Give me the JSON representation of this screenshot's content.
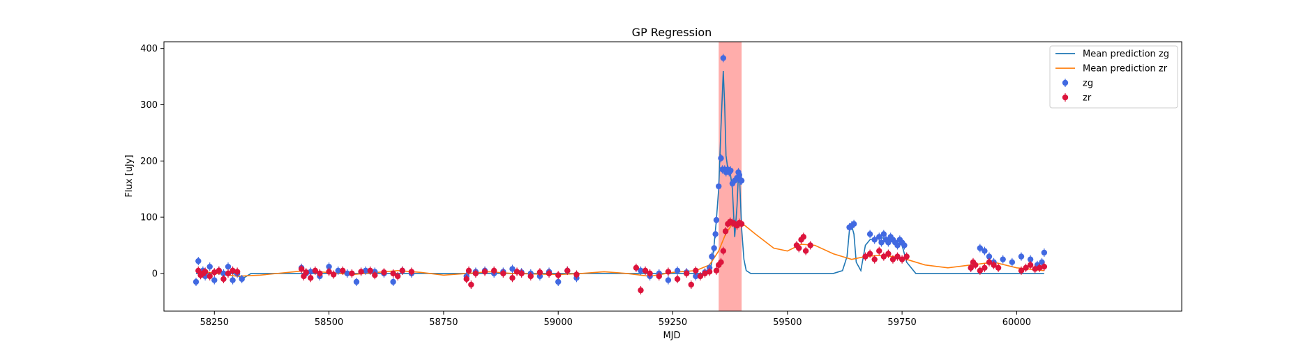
{
  "chart_data": {
    "type": "scatter",
    "title": "GP Regression",
    "xlabel": "MJD",
    "ylabel": "Flux [uJy]",
    "xlim": [
      58140,
      60360
    ],
    "ylim": [
      -67,
      412
    ],
    "xticks": [
      58250,
      58500,
      58750,
      59000,
      59250,
      59500,
      59750,
      60000
    ],
    "yticks": [
      0,
      100,
      200,
      300,
      400
    ],
    "grid": false,
    "legend_position": "top-right",
    "highlight_band": {
      "x0": 59350,
      "x1": 59400,
      "color": "#ff9896"
    },
    "series": [
      {
        "name": "Mean prediction zg",
        "kind": "line",
        "color": "#1f77b4",
        "x": [
          58210,
          58290,
          58300,
          58310,
          58320,
          58330,
          58340,
          59330,
          59335,
          59340,
          59345,
          59350,
          59355,
          59360,
          59363,
          59366,
          59370,
          59375,
          59380,
          59385,
          59390,
          59393,
          59396,
          59400,
          59405,
          59410,
          59420,
          59600,
          59620,
          59630,
          59635,
          59640,
          59645,
          59650,
          59660,
          59670,
          59680,
          59700,
          59720,
          59740,
          59750,
          59760,
          59780,
          59890,
          60060
        ],
        "y": [
          0,
          0,
          -3,
          -10,
          -5,
          0,
          0,
          0,
          20,
          50,
          95,
          150,
          260,
          360,
          300,
          210,
          185,
          180,
          150,
          65,
          120,
          175,
          160,
          80,
          25,
          5,
          0,
          0,
          5,
          30,
          75,
          85,
          70,
          20,
          5,
          50,
          60,
          65,
          60,
          55,
          50,
          20,
          0,
          0,
          0
        ]
      },
      {
        "name": "Mean prediction zr",
        "kind": "line",
        "color": "#ff7f0e",
        "x": [
          58210,
          58300,
          58350,
          58450,
          58550,
          58650,
          58700,
          58750,
          58800,
          58850,
          58900,
          59000,
          59050,
          59100,
          59150,
          59200,
          59250,
          59300,
          59330,
          59350,
          59365,
          59380,
          59400,
          59430,
          59470,
          59500,
          59530,
          59560,
          59600,
          59640,
          59670,
          59700,
          59730,
          59760,
          59800,
          59850,
          59900,
          59950,
          60000,
          60060
        ],
        "y": [
          5,
          -5,
          -3,
          5,
          -2,
          5,
          2,
          -3,
          0,
          3,
          0,
          -2,
          0,
          3,
          0,
          -5,
          2,
          5,
          15,
          40,
          70,
          88,
          90,
          70,
          45,
          40,
          52,
          50,
          35,
          25,
          30,
          32,
          30,
          25,
          15,
          10,
          15,
          20,
          10,
          5
        ]
      },
      {
        "name": "zg",
        "kind": "points",
        "color": "#4169e1",
        "x": [
          58210,
          58215,
          58220,
          58225,
          58230,
          58240,
          58250,
          58260,
          58270,
          58280,
          58290,
          58300,
          58310,
          58440,
          58450,
          58460,
          58480,
          58500,
          58520,
          58540,
          58560,
          58580,
          58600,
          58620,
          58640,
          58660,
          58680,
          58800,
          58820,
          58840,
          58860,
          58880,
          58900,
          58920,
          58940,
          58960,
          58980,
          59000,
          59020,
          59040,
          59180,
          59200,
          59220,
          59240,
          59260,
          59280,
          59300,
          59320,
          59330,
          59335,
          59340,
          59343,
          59345,
          59350,
          59355,
          59358,
          59360,
          59363,
          59366,
          59370,
          59373,
          59376,
          59380,
          59385,
          59390,
          59393,
          59395,
          59398,
          59400,
          59635,
          59640,
          59645,
          59680,
          59690,
          59700,
          59705,
          59710,
          59715,
          59720,
          59725,
          59730,
          59735,
          59740,
          59745,
          59750,
          59755,
          59900,
          59920,
          59930,
          59940,
          59950,
          59970,
          59990,
          60010,
          60030,
          60045,
          60055,
          60060
        ],
        "y": [
          -15,
          22,
          0,
          5,
          -5,
          12,
          -12,
          5,
          0,
          12,
          -12,
          0,
          -10,
          10,
          0,
          3,
          -5,
          12,
          5,
          0,
          -15,
          5,
          3,
          0,
          -15,
          5,
          0,
          -5,
          3,
          5,
          0,
          3,
          8,
          2,
          0,
          -5,
          3,
          -15,
          5,
          -8,
          5,
          -5,
          0,
          -12,
          5,
          2,
          -5,
          2,
          10,
          30,
          45,
          70,
          95,
          155,
          205,
          185,
          383,
          185,
          180,
          185,
          180,
          183,
          160,
          165,
          170,
          180,
          175,
          165,
          165,
          82,
          85,
          88,
          70,
          60,
          65,
          55,
          70,
          60,
          55,
          65,
          60,
          55,
          50,
          60,
          55,
          50,
          10,
          45,
          40,
          30,
          20,
          25,
          20,
          30,
          25,
          15,
          20,
          37
        ]
      },
      {
        "name": "zr",
        "kind": "points",
        "color": "#dc143c",
        "x": [
          58215,
          58220,
          58225,
          58230,
          58240,
          58250,
          58260,
          58270,
          58280,
          58290,
          58300,
          58440,
          58445,
          58450,
          58460,
          58470,
          58480,
          58500,
          58510,
          58530,
          58550,
          58570,
          58590,
          58600,
          58620,
          58640,
          58650,
          58660,
          58680,
          58800,
          58805,
          58810,
          58820,
          58840,
          58860,
          58880,
          58900,
          58910,
          58920,
          58940,
          58960,
          58980,
          59000,
          59020,
          59040,
          59170,
          59180,
          59190,
          59200,
          59220,
          59240,
          59260,
          59280,
          59290,
          59300,
          59310,
          59320,
          59330,
          59345,
          59350,
          59355,
          59360,
          59365,
          59370,
          59375,
          59380,
          59385,
          59390,
          59395,
          59400,
          59520,
          59525,
          59530,
          59535,
          59540,
          59550,
          59670,
          59680,
          59690,
          59700,
          59710,
          59720,
          59730,
          59740,
          59750,
          59760,
          59900,
          59905,
          59910,
          59920,
          59930,
          59940,
          59950,
          59960,
          60010,
          60020,
          60030,
          60040,
          60050,
          60060
        ],
        "y": [
          5,
          -3,
          0,
          3,
          -5,
          2,
          5,
          -10,
          0,
          5,
          3,
          8,
          -5,
          2,
          -8,
          5,
          0,
          3,
          -2,
          5,
          0,
          3,
          5,
          -3,
          2,
          0,
          -5,
          5,
          3,
          -10,
          5,
          -20,
          0,
          3,
          5,
          0,
          -8,
          3,
          0,
          -5,
          2,
          0,
          -3,
          5,
          -2,
          10,
          -30,
          5,
          0,
          -5,
          3,
          -10,
          0,
          -20,
          5,
          -5,
          0,
          3,
          5,
          15,
          20,
          40,
          75,
          88,
          92,
          90,
          88,
          85,
          90,
          88,
          50,
          45,
          60,
          65,
          40,
          50,
          30,
          35,
          25,
          40,
          30,
          35,
          25,
          30,
          25,
          30,
          10,
          20,
          15,
          5,
          10,
          20,
          15,
          10,
          5,
          10,
          15,
          8,
          10,
          12
        ]
      }
    ]
  }
}
